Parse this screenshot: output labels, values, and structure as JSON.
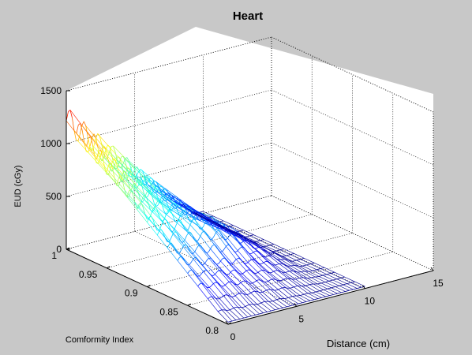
{
  "chart_data": {
    "type": "surface",
    "title": "Heart",
    "xlabel": "Distance (cm)",
    "ylabel": "Comformity Index",
    "zlabel": "EUD (cGy)",
    "x_ticks": [
      "0",
      "5",
      "10",
      "15"
    ],
    "y_ticks": [
      "0.8",
      "0.85",
      "0.9",
      "0.95",
      "1"
    ],
    "z_ticks": [
      "0",
      "500",
      "1000",
      "1500"
    ],
    "xlim": [
      0,
      15
    ],
    "ylim": [
      0.8,
      1
    ],
    "zlim": [
      0,
      1500
    ],
    "grid": true,
    "colormap": "jet",
    "background": "#c8c8c8"
  }
}
